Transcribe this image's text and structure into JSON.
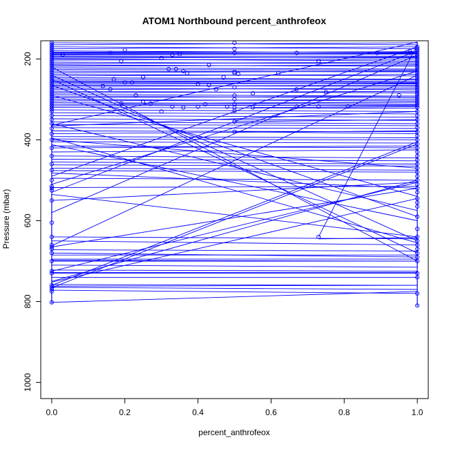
{
  "chart_data": {
    "type": "line",
    "title": "ATOM1 Northbound percent_anthrofeox",
    "xlabel": "percent_anthrofeox",
    "ylabel": "Pressure (mbar)",
    "xlim": [
      -0.03,
      1.03
    ],
    "ylim": [
      1040,
      155
    ],
    "y_reversed": true,
    "xticks": [
      0.0,
      0.2,
      0.4,
      0.6,
      0.8,
      1.0
    ],
    "xtick_labels": [
      "0.0",
      "0.2",
      "0.4",
      "0.6",
      "0.8",
      "1.0"
    ],
    "yticks": [
      200,
      400,
      600,
      800,
      1000
    ],
    "ytick_labels": [
      "200",
      "400",
      "600",
      "800",
      "1000"
    ],
    "series_color": "#0000ff",
    "grid": false,
    "segments": [
      [
        [
          0,
          160
        ],
        [
          1,
          165
        ]
      ],
      [
        [
          0,
          165
        ],
        [
          1,
          160
        ]
      ],
      [
        [
          0,
          170
        ],
        [
          1,
          175
        ]
      ],
      [
        [
          0,
          175
        ],
        [
          1,
          170
        ]
      ],
      [
        [
          0,
          180
        ],
        [
          1,
          185
        ]
      ],
      [
        [
          0,
          183
        ],
        [
          1,
          183
        ]
      ],
      [
        [
          0,
          185
        ],
        [
          1,
          182
        ]
      ],
      [
        [
          0,
          186
        ],
        [
          1,
          187
        ]
      ],
      [
        [
          0,
          188
        ],
        [
          1,
          188
        ]
      ],
      [
        [
          0,
          190
        ],
        [
          1,
          186
        ]
      ],
      [
        [
          0,
          193
        ],
        [
          1,
          193
        ]
      ],
      [
        [
          0,
          195
        ],
        [
          1,
          197
        ]
      ],
      [
        [
          0,
          198
        ],
        [
          1,
          195
        ]
      ],
      [
        [
          0,
          200
        ],
        [
          1,
          205
        ]
      ],
      [
        [
          0,
          203
        ],
        [
          1,
          200
        ]
      ],
      [
        [
          0,
          208
        ],
        [
          1,
          212
        ]
      ],
      [
        [
          0,
          212
        ],
        [
          1,
          208
        ]
      ],
      [
        [
          0,
          215
        ],
        [
          1,
          218
        ]
      ],
      [
        [
          0,
          218
        ],
        [
          1,
          215
        ]
      ],
      [
        [
          0,
          222
        ],
        [
          1,
          225
        ]
      ],
      [
        [
          0,
          226
        ],
        [
          1,
          228
        ]
      ],
      [
        [
          0,
          230
        ],
        [
          1,
          232
        ]
      ],
      [
        [
          0,
          234
        ],
        [
          1,
          230
        ]
      ],
      [
        [
          0,
          238
        ],
        [
          1,
          242
        ]
      ],
      [
        [
          0,
          242
        ],
        [
          1,
          238
        ]
      ],
      [
        [
          0,
          246
        ],
        [
          1,
          250
        ]
      ],
      [
        [
          0,
          250
        ],
        [
          1,
          252
        ]
      ],
      [
        [
          0,
          254
        ],
        [
          1,
          256
        ]
      ],
      [
        [
          0,
          256
        ],
        [
          1,
          258
        ]
      ],
      [
        [
          0,
          258
        ],
        [
          1,
          262
        ]
      ],
      [
        [
          0,
          262
        ],
        [
          1,
          260
        ]
      ],
      [
        [
          0,
          265
        ],
        [
          1,
          268
        ]
      ],
      [
        [
          0,
          268
        ],
        [
          1,
          265
        ]
      ],
      [
        [
          0,
          272
        ],
        [
          1,
          276
        ]
      ],
      [
        [
          0,
          276
        ],
        [
          1,
          272
        ]
      ],
      [
        [
          0,
          280
        ],
        [
          1,
          284
        ]
      ],
      [
        [
          0,
          284
        ],
        [
          1,
          280
        ]
      ],
      [
        [
          0,
          288
        ],
        [
          1,
          292
        ]
      ],
      [
        [
          0,
          292
        ],
        [
          1,
          296
        ]
      ],
      [
        [
          0,
          296
        ],
        [
          1,
          292
        ]
      ],
      [
        [
          0,
          300
        ],
        [
          1,
          304
        ]
      ],
      [
        [
          0,
          304
        ],
        [
          1,
          300
        ]
      ],
      [
        [
          0,
          308
        ],
        [
          1,
          312
        ]
      ],
      [
        [
          0,
          312
        ],
        [
          1,
          316
        ]
      ],
      [
        [
          0,
          316
        ],
        [
          1,
          314
        ]
      ],
      [
        [
          0,
          320
        ],
        [
          1,
          322
        ]
      ],
      [
        [
          0,
          326
        ],
        [
          1,
          330
        ]
      ],
      [
        [
          0,
          333
        ],
        [
          1,
          336
        ]
      ],
      [
        [
          0,
          340
        ],
        [
          1,
          344
        ]
      ],
      [
        [
          0,
          348
        ],
        [
          1,
          352
        ]
      ],
      [
        [
          0,
          356
        ],
        [
          1,
          360
        ]
      ],
      [
        [
          0,
          362
        ],
        [
          1,
          365
        ]
      ],
      [
        [
          0,
          364
        ],
        [
          1,
          158
        ]
      ],
      [
        [
          0,
          366
        ],
        [
          1,
          330
        ]
      ],
      [
        [
          0,
          370
        ],
        [
          1,
          372
        ]
      ],
      [
        [
          0,
          378
        ],
        [
          1,
          380
        ]
      ],
      [
        [
          0,
          385
        ],
        [
          1,
          378
        ]
      ],
      [
        [
          0,
          392
        ],
        [
          1,
          395
        ]
      ],
      [
        [
          0,
          398
        ],
        [
          1,
          400
        ]
      ],
      [
        [
          0,
          400
        ],
        [
          1,
          470
        ]
      ],
      [
        [
          0,
          405
        ],
        [
          1,
          408
        ]
      ],
      [
        [
          0,
          412
        ],
        [
          1,
          600
        ]
      ],
      [
        [
          0,
          415
        ],
        [
          1,
          420
        ]
      ],
      [
        [
          0,
          420
        ],
        [
          1,
          415
        ]
      ],
      [
        [
          0,
          430
        ],
        [
          1,
          425
        ]
      ],
      [
        [
          0,
          440
        ],
        [
          1,
          445
        ]
      ],
      [
        [
          0,
          448
        ],
        [
          1,
          452
        ]
      ],
      [
        [
          0,
          455
        ],
        [
          1,
          460
        ]
      ],
      [
        [
          0,
          462
        ],
        [
          1,
          465
        ]
      ],
      [
        [
          0,
          470
        ],
        [
          1,
          475
        ]
      ],
      [
        [
          0,
          476
        ],
        [
          1,
          480
        ]
      ],
      [
        [
          0,
          482
        ],
        [
          1,
          520
        ]
      ],
      [
        [
          0,
          490
        ],
        [
          1,
          170
        ]
      ],
      [
        [
          0,
          495
        ],
        [
          1,
          500
        ]
      ],
      [
        [
          0,
          510
        ],
        [
          1,
          230
        ]
      ],
      [
        [
          0,
          518
        ],
        [
          1,
          515
        ]
      ],
      [
        [
          0,
          530
        ],
        [
          1,
          180
        ]
      ],
      [
        [
          0,
          535
        ],
        [
          1,
          640
        ]
      ],
      [
        [
          0,
          550
        ],
        [
          1,
          505
        ]
      ],
      [
        [
          0,
          580
        ],
        [
          1,
          190
        ]
      ],
      [
        [
          0,
          640
        ],
        [
          1,
          645
        ]
      ],
      [
        [
          0,
          650
        ],
        [
          1,
          660
        ]
      ],
      [
        [
          0,
          662
        ],
        [
          1,
          240
        ]
      ],
      [
        [
          0,
          665
        ],
        [
          1,
          520
        ]
      ],
      [
        [
          0,
          672
        ],
        [
          1,
          675
        ]
      ],
      [
        [
          0,
          680
        ],
        [
          1,
          690
        ]
      ],
      [
        [
          0,
          685
        ],
        [
          1,
          685
        ]
      ],
      [
        [
          0,
          695
        ],
        [
          1,
          695
        ]
      ],
      [
        [
          0,
          698
        ],
        [
          1,
          700
        ]
      ],
      [
        [
          0,
          700
        ],
        [
          1,
          700
        ]
      ],
      [
        [
          0,
          710
        ],
        [
          1,
          715
        ]
      ],
      [
        [
          0,
          722
        ],
        [
          1,
          725
        ]
      ],
      [
        [
          0,
          725
        ],
        [
          1,
          505
        ]
      ],
      [
        [
          0,
          728
        ],
        [
          1,
          728
        ]
      ],
      [
        [
          0,
          730
        ],
        [
          1,
          730
        ]
      ],
      [
        [
          0,
          740
        ],
        [
          1,
          740
        ]
      ],
      [
        [
          0,
          750
        ],
        [
          1,
          500
        ]
      ],
      [
        [
          0,
          752
        ],
        [
          1,
          545
        ]
      ],
      [
        [
          0,
          758
        ],
        [
          1,
          760
        ]
      ],
      [
        [
          0,
          760
        ],
        [
          1,
          405
        ]
      ],
      [
        [
          0,
          762
        ],
        [
          1,
          760
        ]
      ],
      [
        [
          0,
          765
        ],
        [
          1,
          770
        ]
      ],
      [
        [
          0,
          766
        ],
        [
          1,
          410
        ]
      ],
      [
        [
          0,
          772
        ],
        [
          1,
          780
        ]
      ],
      [
        [
          0,
          802
        ],
        [
          1,
          775
        ]
      ],
      [
        [
          0,
          360
        ],
        [
          1,
          575
        ]
      ],
      [
        [
          0,
          395
        ],
        [
          1,
          655
        ]
      ],
      [
        [
          0,
          290
        ],
        [
          1,
          540
        ]
      ],
      [
        [
          0,
          265
        ],
        [
          1,
          590
        ]
      ],
      [
        [
          0,
          240
        ],
        [
          1,
          650
        ]
      ],
      [
        [
          0,
          220
        ],
        [
          1,
          700
        ]
      ],
      [
        [
          0,
          250
        ],
        [
          1,
          680
        ]
      ],
      [
        [
          0.19,
          310
        ],
        [
          1,
          307
        ]
      ],
      [
        [
          0.5,
          355
        ],
        [
          1,
          350
        ]
      ],
      [
        [
          0.5,
          380
        ],
        [
          1,
          385
        ]
      ],
      [
        [
          0.55,
          320
        ],
        [
          1,
          318
        ]
      ],
      [
        [
          0.73,
          640
        ],
        [
          1,
          165
        ]
      ],
      [
        [
          0.73,
          645
        ],
        [
          1,
          642
        ]
      ]
    ],
    "points": [
      [
        0.03,
        190
      ],
      [
        0.16,
        185
      ],
      [
        0.19,
        205
      ],
      [
        0.2,
        178
      ],
      [
        0.17,
        250
      ],
      [
        0.2,
        258
      ],
      [
        0.22,
        258
      ],
      [
        0.23,
        290
      ],
      [
        0.25,
        245
      ],
      [
        0.27,
        310
      ],
      [
        0.3,
        198
      ],
      [
        0.32,
        225
      ],
      [
        0.33,
        190
      ],
      [
        0.34,
        225
      ],
      [
        0.35,
        188
      ],
      [
        0.36,
        230
      ],
      [
        0.37,
        235
      ],
      [
        0.16,
        275
      ],
      [
        0.14,
        267
      ],
      [
        0.19,
        310
      ],
      [
        0.25,
        305
      ],
      [
        0.3,
        330
      ],
      [
        0.33,
        318
      ],
      [
        0.36,
        320
      ],
      [
        0.4,
        262
      ],
      [
        0.4,
        318
      ],
      [
        0.42,
        312
      ],
      [
        0.43,
        215
      ],
      [
        0.43,
        265
      ],
      [
        0.45,
        275
      ],
      [
        0.47,
        245
      ],
      [
        0.48,
        318
      ],
      [
        0.5,
        160
      ],
      [
        0.5,
        175
      ],
      [
        0.5,
        185
      ],
      [
        0.5,
        232
      ],
      [
        0.5,
        235
      ],
      [
        0.51,
        237
      ],
      [
        0.5,
        270
      ],
      [
        0.5,
        290
      ],
      [
        0.5,
        300
      ],
      [
        0.5,
        312
      ],
      [
        0.5,
        320
      ],
      [
        0.5,
        328
      ],
      [
        0.5,
        355
      ],
      [
        0.5,
        380
      ],
      [
        0.55,
        285
      ],
      [
        0.55,
        320
      ],
      [
        0.62,
        235
      ],
      [
        0.67,
        185
      ],
      [
        0.67,
        275
      ],
      [
        0.67,
        318
      ],
      [
        0.73,
        205
      ],
      [
        0.73,
        318
      ],
      [
        0.75,
        282
      ],
      [
        0.81,
        318
      ],
      [
        0.89,
        185
      ],
      [
        0.73,
        640
      ],
      [
        0.98,
        180
      ],
      [
        0.98,
        185
      ],
      [
        0.95,
        290
      ]
    ],
    "left_points": [
      160,
      165,
      170,
      175,
      180,
      185,
      190,
      195,
      200,
      205,
      210,
      215,
      220,
      225,
      230,
      235,
      240,
      245,
      250,
      255,
      260,
      265,
      270,
      275,
      280,
      285,
      290,
      295,
      300,
      305,
      310,
      315,
      320,
      325,
      330,
      340,
      350,
      360,
      372,
      385,
      400,
      420,
      440,
      460,
      475,
      500,
      515,
      520,
      525,
      550,
      605,
      640,
      660,
      665,
      670,
      680,
      700,
      725,
      730,
      760,
      765,
      770,
      775,
      802
    ],
    "right_points": [
      170,
      175,
      180,
      185,
      190,
      195,
      200,
      205,
      210,
      215,
      220,
      225,
      230,
      235,
      240,
      245,
      250,
      255,
      260,
      265,
      270,
      275,
      280,
      285,
      290,
      295,
      300,
      305,
      310,
      315,
      320,
      330,
      340,
      350,
      360,
      370,
      380,
      390,
      400,
      410,
      420,
      430,
      440,
      450,
      460,
      470,
      480,
      490,
      500,
      510,
      520,
      530,
      545,
      555,
      565,
      590,
      620,
      640,
      650,
      660,
      670,
      680,
      690,
      700,
      730,
      740,
      780,
      810
    ]
  }
}
